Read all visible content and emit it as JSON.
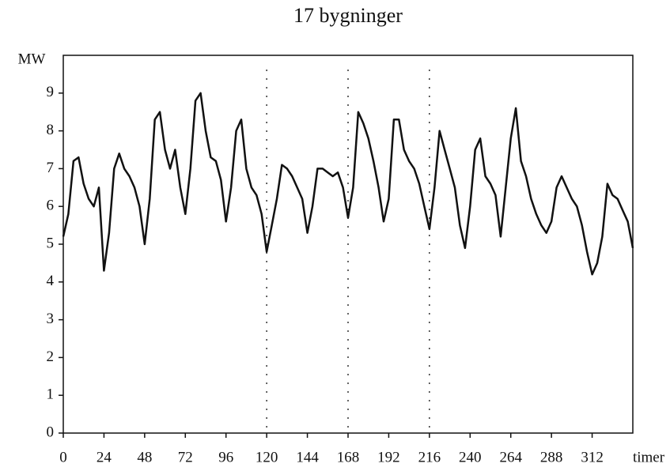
{
  "chart_data": {
    "type": "line",
    "title": "17 bygninger",
    "y_label": "MW",
    "x_label": "timer",
    "x": [
      0,
      3,
      6,
      9,
      12,
      15,
      18,
      21,
      24,
      27,
      30,
      33,
      36,
      39,
      42,
      45,
      48,
      51,
      54,
      57,
      60,
      63,
      66,
      69,
      72,
      75,
      78,
      81,
      84,
      87,
      90,
      93,
      96,
      99,
      102,
      105,
      108,
      111,
      114,
      117,
      120,
      123,
      126,
      129,
      132,
      135,
      138,
      141,
      144,
      147,
      150,
      153,
      156,
      159,
      162,
      165,
      168,
      171,
      174,
      177,
      180,
      183,
      186,
      189,
      192,
      195,
      198,
      201,
      204,
      207,
      210,
      213,
      216,
      219,
      222,
      225,
      228,
      231,
      234,
      237,
      240,
      243,
      246,
      249,
      252,
      255,
      258,
      261,
      264,
      267,
      270,
      273,
      276,
      279,
      282,
      285,
      288,
      291,
      294,
      297,
      300,
      303,
      306,
      309,
      312,
      315,
      318,
      321,
      324,
      327,
      330,
      333,
      336
    ],
    "series": [
      {
        "color": "#111111",
        "values": [
          5.2,
          5.8,
          7.2,
          7.3,
          6.6,
          6.2,
          6.0,
          6.5,
          4.3,
          5.3,
          7.0,
          7.4,
          7.0,
          6.8,
          6.5,
          6.0,
          5.0,
          6.2,
          8.3,
          8.5,
          7.5,
          7.0,
          7.5,
          6.5,
          5.8,
          7.0,
          8.8,
          9.0,
          8.0,
          7.3,
          7.2,
          6.7,
          5.6,
          6.5,
          8.0,
          8.3,
          7.0,
          6.5,
          6.3,
          5.8,
          4.8,
          5.5,
          6.2,
          7.1,
          7.0,
          6.8,
          6.5,
          6.2,
          5.3,
          6.0,
          7.0,
          7.0,
          6.9,
          6.8,
          6.9,
          6.5,
          5.7,
          6.5,
          8.5,
          8.2,
          7.8,
          7.2,
          6.5,
          5.6,
          6.2,
          8.3,
          8.3,
          7.5,
          7.2,
          7.0,
          6.6,
          6.0,
          5.4,
          6.5,
          8.0,
          7.5,
          7.0,
          6.5,
          5.5,
          4.9,
          6.0,
          7.5,
          7.8,
          6.8,
          6.6,
          6.3,
          5.2,
          6.5,
          7.8,
          8.6,
          7.2,
          6.8,
          6.2,
          5.8,
          5.5,
          5.3,
          5.6,
          6.5,
          6.8,
          6.5,
          6.2,
          6.0,
          5.5,
          4.8,
          4.2,
          4.5,
          5.2,
          6.6,
          6.3,
          6.2,
          5.9,
          5.6,
          4.9
        ]
      }
    ],
    "xlim": [
      0,
      336
    ],
    "ylim": [
      0,
      10
    ],
    "xticks": [
      0,
      24,
      48,
      72,
      96,
      120,
      144,
      168,
      192,
      216,
      240,
      264,
      288,
      312
    ],
    "yticks": [
      0,
      1,
      2,
      3,
      4,
      5,
      6,
      7,
      8,
      9
    ],
    "vlines": [
      120,
      168,
      216
    ]
  }
}
